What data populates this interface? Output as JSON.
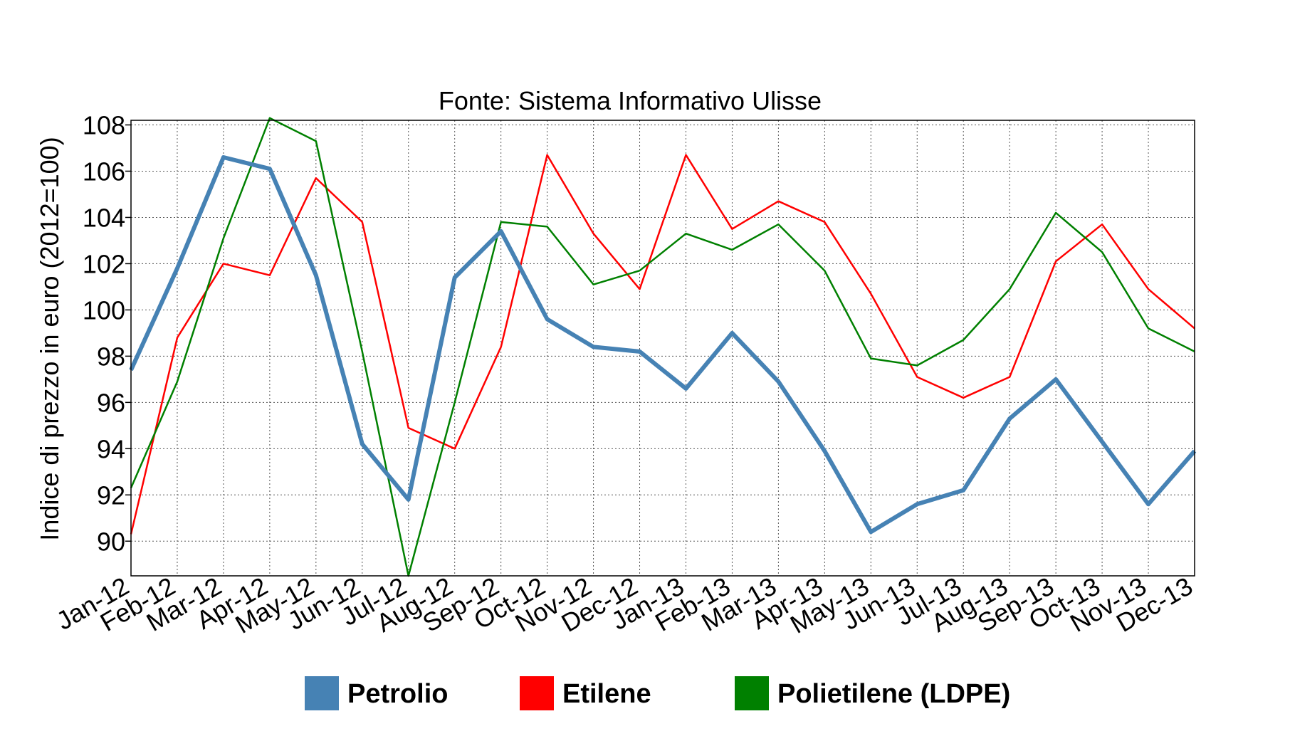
{
  "chart_data": {
    "type": "line",
    "title": "Fonte: Sistema Informativo Ulisse",
    "xlabel": "",
    "ylabel": "Indice di prezzo in euro (2012=100)",
    "categories": [
      "Jan-12",
      "Feb-12",
      "Mar-12",
      "Apr-12",
      "May-12",
      "Jun-12",
      "Jul-12",
      "Aug-12",
      "Sep-12",
      "Oct-12",
      "Nov-12",
      "Dec-12",
      "Jan-13",
      "Feb-13",
      "Mar-13",
      "Apr-13",
      "May-13",
      "Jun-13",
      "Jul-13",
      "Aug-13",
      "Sep-13",
      "Oct-13",
      "Nov-13",
      "Dec-13"
    ],
    "ylim": [
      88.5,
      108.2
    ],
    "yticks": [
      90,
      92,
      94,
      96,
      98,
      100,
      102,
      104,
      106,
      108
    ],
    "grid": true,
    "legend_position": "bottom",
    "series": [
      {
        "name": "Petrolio",
        "color": "#4682b4",
        "values": [
          97.4,
          101.8,
          106.6,
          106.1,
          101.5,
          94.2,
          91.8,
          101.4,
          103.4,
          99.6,
          98.4,
          98.2,
          96.6,
          99.0,
          96.9,
          93.9,
          90.4,
          91.6,
          92.2,
          95.3,
          97.0,
          94.3,
          91.6,
          93.9
        ]
      },
      {
        "name": "Etilene",
        "color": "#ff0000",
        "values": [
          90.3,
          98.8,
          102.0,
          101.5,
          105.7,
          103.8,
          94.9,
          94.0,
          98.4,
          106.7,
          103.3,
          100.9,
          106.7,
          103.5,
          104.7,
          103.8,
          100.7,
          97.1,
          96.2,
          97.1,
          102.1,
          103.7,
          100.9,
          99.2
        ]
      },
      {
        "name": "Polietilene (LDPE)",
        "color": "#008000",
        "values": [
          92.3,
          96.9,
          103.1,
          108.3,
          107.3,
          98.2,
          88.5,
          96.0,
          103.8,
          103.6,
          101.1,
          101.7,
          103.3,
          102.6,
          103.7,
          101.7,
          97.9,
          97.6,
          98.7,
          100.9,
          104.2,
          102.5,
          99.2,
          98.2
        ]
      }
    ]
  }
}
